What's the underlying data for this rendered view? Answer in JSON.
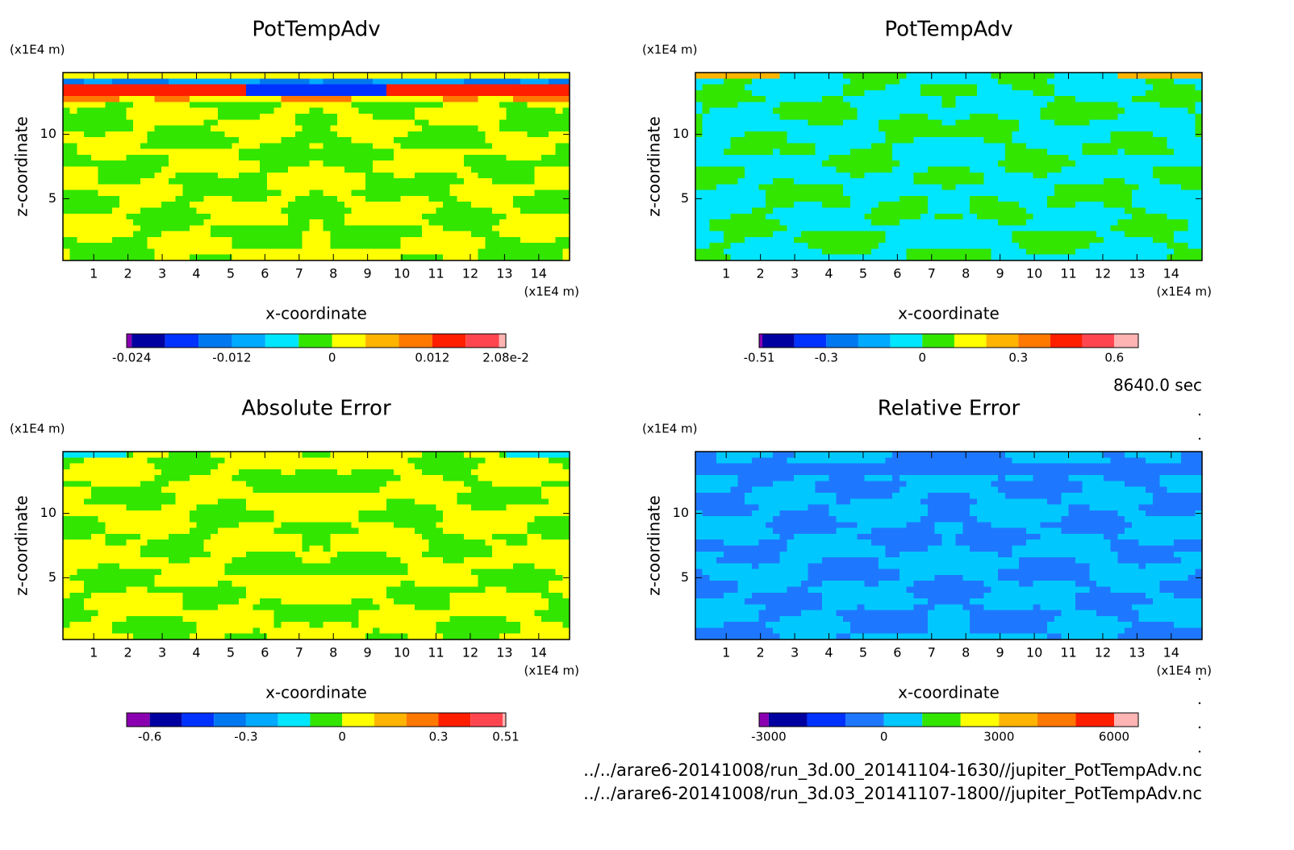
{
  "chart_data": [
    {
      "type": "contour",
      "title": "PotTempAdv",
      "x_label": "x-coordinate",
      "y_label": "z-coordinate",
      "x_unit": "(x1E4 m)",
      "y_unit": "(x1E4 m)",
      "xlim": [
        0.1,
        14.9
      ],
      "ylim": [
        0.2,
        14.8
      ],
      "xticks": [
        1,
        2,
        3,
        4,
        5,
        6,
        7,
        8,
        9,
        10,
        11,
        12,
        13,
        14
      ],
      "yticks": [
        5,
        10
      ],
      "colorbar": {
        "levels": [
          -0.0246,
          -0.024,
          -0.02,
          -0.016,
          -0.012,
          -0.008,
          -0.004,
          0,
          0.004,
          0.008,
          0.012,
          0.016,
          0.02,
          0.0208
        ],
        "colors": [
          "#8a00b0",
          "#0000a0",
          "#0032ff",
          "#0078f0",
          "#00aaff",
          "#00e6ff",
          "#32e600",
          "#ffff00",
          "#ffb400",
          "#ff7800",
          "#ff1e00",
          "#ff4650",
          "#ffb4b4"
        ],
        "ticks": [
          -0.024,
          -0.012,
          0,
          0.012,
          {
            "value": 0.0208,
            "label": "2.08e-2"
          }
        ]
      }
    },
    {
      "type": "contour",
      "title": "PotTempAdv",
      "x_label": "x-coordinate",
      "y_label": "z-coordinate",
      "x_unit": "(x1E4 m)",
      "y_unit": "(x1E4 m)",
      "xlim": [
        0.1,
        14.9
      ],
      "ylim": [
        0.2,
        14.8
      ],
      "xticks": [
        1,
        2,
        3,
        4,
        5,
        6,
        7,
        8,
        9,
        10,
        11,
        12,
        13,
        14
      ],
      "yticks": [
        5,
        10
      ],
      "colorbar": {
        "levels": [
          -0.51,
          -0.5,
          -0.4,
          -0.3,
          -0.2,
          -0.1,
          0,
          0.1,
          0.2,
          0.3,
          0.4,
          0.5,
          0.6,
          0.675
        ],
        "colors": [
          "#8a00b0",
          "#0000a0",
          "#0032ff",
          "#0078f0",
          "#00aaff",
          "#00e6ff",
          "#32e600",
          "#ffff00",
          "#ffb400",
          "#ff7800",
          "#ff1e00",
          "#ff4650",
          "#ffb4b4"
        ],
        "ticks": [
          -0.51,
          -0.3,
          0,
          0.3,
          0.6
        ]
      }
    },
    {
      "type": "contour",
      "title": "Absolute Error",
      "x_label": "x-coordinate",
      "y_label": "z-coordinate",
      "x_unit": "(x1E4 m)",
      "y_unit": "(x1E4 m)",
      "xlim": [
        0.1,
        14.9
      ],
      "ylim": [
        0.2,
        14.8
      ],
      "xticks": [
        1,
        2,
        3,
        4,
        5,
        6,
        7,
        8,
        9,
        10,
        11,
        12,
        13,
        14
      ],
      "yticks": [
        5,
        10
      ],
      "colorbar": {
        "levels": [
          -0.672,
          -0.6,
          -0.5,
          -0.4,
          -0.3,
          -0.2,
          -0.1,
          0,
          0.1,
          0.2,
          0.3,
          0.4,
          0.5,
          0.51
        ],
        "colors": [
          "#8a00b0",
          "#0000a0",
          "#0032ff",
          "#0078f0",
          "#00aaff",
          "#00e6ff",
          "#32e600",
          "#ffff00",
          "#ffb400",
          "#ff7800",
          "#ff1e00",
          "#ff4650",
          "#ffb4b4"
        ],
        "ticks": [
          -0.6,
          -0.3,
          0,
          0.3,
          0.51
        ]
      }
    },
    {
      "type": "contour",
      "title": "Relative Error",
      "x_label": "x-coordinate",
      "y_label": "z-coordinate",
      "x_unit": "(x1E4 m)",
      "y_unit": "(x1E4 m)",
      "xlim": [
        0.1,
        14.9
      ],
      "ylim": [
        0.2,
        14.8
      ],
      "xticks": [
        1,
        2,
        3,
        4,
        5,
        6,
        7,
        8,
        9,
        10,
        11,
        12,
        13,
        14
      ],
      "yticks": [
        5,
        10
      ],
      "colorbar": {
        "levels": [
          -3250,
          -3000,
          -2000,
          -1000,
          0,
          1000,
          2000,
          3000,
          4000,
          5000,
          6000,
          6630
        ],
        "colors": [
          "#8a00b0",
          "#0000a0",
          "#0032ff",
          "#1e78ff",
          "#00c8ff",
          "#32e600",
          "#ffff00",
          "#ffb400",
          "#ff7800",
          "#ff1e00",
          "#ffb4b4"
        ],
        "ticks": [
          -3000,
          0,
          3000,
          6000
        ]
      }
    }
  ],
  "time_label": "8640.0 sec",
  "files": [
    "../../arare6-20141008/run_3d.00_20141104-1630//jupiter_PotTempAdv.nc",
    "../../arare6-20141008/run_3d.03_20141107-1800//jupiter_PotTempAdv.nc"
  ]
}
